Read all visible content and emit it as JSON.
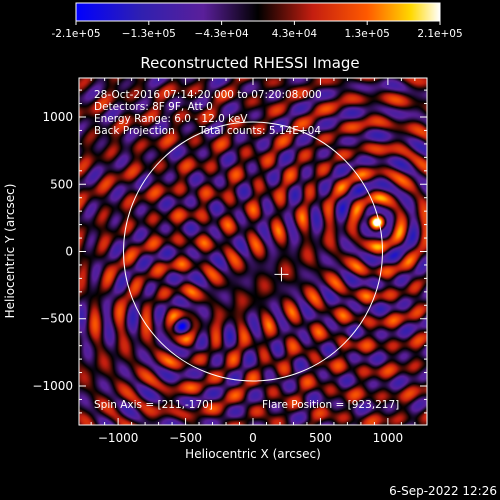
{
  "colors": {
    "background": "#000000",
    "foreground": "#ffffff",
    "colormap": [
      "#0000ff",
      "#3020b0",
      "#5a1f9a",
      "#000000",
      "#c41e10",
      "#ff5a00",
      "#ffd800",
      "#ffffff"
    ]
  },
  "colorbar": {
    "ticks": [
      "-2.1e+05",
      "−1.3e+05",
      "−4.3e+04",
      "4.3e+04",
      "1.3e+05",
      "2.1e+05"
    ],
    "range": [
      -210000,
      210000
    ]
  },
  "chart_data": {
    "type": "heatmap",
    "title": "Reconstructed RHESSI Image",
    "xlabel": "Heliocentric X (arcsec)",
    "ylabel": "Heliocentric Y (arcsec)",
    "xlim": [
      -1290,
      1290
    ],
    "ylim": [
      -1290,
      1290
    ],
    "xticks": [
      -1000,
      -500,
      0,
      500,
      1000
    ],
    "yticks": [
      -1000,
      -500,
      0,
      500,
      1000
    ],
    "xtick_labels": [
      "−1000",
      "−500",
      "0",
      "500",
      "1000"
    ],
    "ytick_labels": [
      "−1000",
      "−500",
      "0",
      "500",
      "1000"
    ],
    "solar_limb_radius": 960,
    "spin_axis_marker": [
      211,
      -170
    ],
    "peak_source": {
      "x": 923,
      "y": 217,
      "level": 210000
    },
    "min_source": {
      "x": -530,
      "y": -560,
      "level": -210000
    },
    "annotations": [
      "28-Oct-2016 07:14:20.000 to 07:20:08.000",
      "Detectors: 8F 9F, Att 0",
      "Energy Range: 6.0 - 12.0 keV"
    ],
    "method": "Back Projection",
    "total_counts": "Total counts: 5.14E+04",
    "spin_axis": "Spin Axis = [211,-170]",
    "flare_position": "Flare Position = [923,217]"
  },
  "footer": {
    "timestamp": "6-Sep-2022 12:26"
  }
}
